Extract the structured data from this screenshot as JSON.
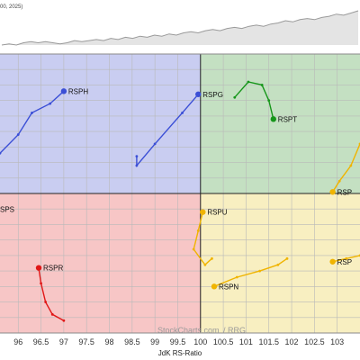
{
  "header": {
    "date_fragment": "00, 2025)"
  },
  "colors": {
    "improving": "#c9cdf1",
    "leading": "#c4e0c2",
    "lagging": "#f7c6c6",
    "weakening": "#f8efc1",
    "center_lines": "#222222",
    "grid": "#b9b9b9",
    "rsph_rspg": "#3b4fd6",
    "rspt": "#16961a",
    "rspr": "#e01818",
    "rspu_rspn_rsps_right": "#f0b400",
    "strip_fill": "#e4e4e4",
    "strip_line": "#9a9a9a"
  },
  "watermark": {
    "brand": "StockCharts.com",
    "product": "/ RRG"
  },
  "chart_data": {
    "type": "scatter",
    "title": "",
    "xlabel": "JdK RS-Ratio",
    "ylabel": "",
    "xlim": [
      95.6,
      103.5
    ],
    "ylim": [
      95.5,
      104.5
    ],
    "center": [
      100,
      100
    ],
    "x_ticks": [
      "96",
      "96.5",
      "97",
      "97.5",
      "98",
      "98.5",
      "99",
      "99.5",
      "100",
      "100.5",
      "101",
      "101.5",
      "102",
      "102.5",
      "103"
    ],
    "quadrants": {
      "improving": "top-left",
      "leading": "top-right",
      "lagging": "bottom-left",
      "weakening": "bottom-right"
    },
    "series": [
      {
        "name": "RSPH",
        "color": "#3b4fd6",
        "points": [
          [
            95.6,
            101.3
          ],
          [
            96.0,
            101.9
          ],
          [
            96.3,
            102.6
          ],
          [
            96.7,
            102.9
          ],
          [
            97.0,
            103.3
          ]
        ]
      },
      {
        "name": "RSPG",
        "color": "#3b4fd6",
        "points": [
          [
            98.6,
            101.2
          ],
          [
            98.6,
            100.9
          ],
          [
            99.0,
            101.6
          ],
          [
            99.6,
            102.6
          ],
          [
            99.95,
            103.2
          ]
        ]
      },
      {
        "name": "RSPT",
        "color": "#16961a",
        "points": [
          [
            100.75,
            103.1
          ],
          [
            101.05,
            103.6
          ],
          [
            101.35,
            103.5
          ],
          [
            101.5,
            103.0
          ],
          [
            101.6,
            102.4
          ]
        ]
      },
      {
        "name": "RSPR",
        "color": "#e01818",
        "points": [
          [
            97.0,
            95.9
          ],
          [
            96.75,
            96.1
          ],
          [
            96.6,
            96.5
          ],
          [
            96.5,
            97.1
          ],
          [
            96.45,
            97.6
          ]
        ]
      },
      {
        "name": "RSPU",
        "color": "#f0b400",
        "points": [
          [
            100.25,
            97.9
          ],
          [
            100.1,
            97.7
          ],
          [
            99.85,
            98.2
          ],
          [
            99.95,
            98.8
          ],
          [
            100.05,
            99.4
          ]
        ]
      },
      {
        "name": "RSPN",
        "color": "#f0b400",
        "points": [
          [
            101.9,
            97.9
          ],
          [
            101.7,
            97.7
          ],
          [
            101.3,
            97.5
          ],
          [
            100.8,
            97.3
          ],
          [
            100.3,
            97.0
          ]
        ]
      },
      {
        "name": "RSPS",
        "color": "#f0b400",
        "points": [
          [
            103.5,
            101.6
          ],
          [
            103.3,
            100.9
          ],
          [
            103.05,
            100.4
          ],
          [
            102.9,
            100.05
          ]
        ]
      },
      {
        "name": "RSPC",
        "color": "#f0b400",
        "points": [
          [
            103.5,
            98.0
          ],
          [
            103.2,
            97.9
          ],
          [
            102.9,
            97.8
          ]
        ]
      }
    ],
    "labels": [
      {
        "text": "RSPH",
        "series": "RSPH",
        "anchor": "end"
      },
      {
        "text": "RSPG",
        "series": "RSPG",
        "anchor": "end"
      },
      {
        "text": "RSPT",
        "series": "RSPT",
        "anchor": "end"
      },
      {
        "text": "RSPR",
        "series": "RSPR",
        "anchor": "end"
      },
      {
        "text": "RSPU",
        "series": "RSPU",
        "anchor": "end"
      },
      {
        "text": "RSPN",
        "series": "RSPN",
        "anchor": "end"
      },
      {
        "text": "RSP",
        "series": "RSPS",
        "anchor": "end"
      },
      {
        "text": "RSP",
        "series": "RSPC",
        "anchor": "end"
      },
      {
        "text": "SPS",
        "series": "",
        "anchor": "left-edge",
        "at": [
          95.6,
          99.4
        ]
      }
    ],
    "strip": {
      "values": [
        2,
        3,
        2,
        4,
        5,
        4,
        5,
        4,
        3,
        4,
        6,
        5,
        6,
        7,
        6,
        8,
        7,
        9,
        8,
        10,
        9,
        11,
        10,
        12,
        11,
        13,
        14,
        13,
        15,
        16,
        15,
        17,
        18,
        17,
        19,
        20,
        19,
        21,
        22,
        24,
        23,
        25,
        26,
        25,
        27,
        28,
        30,
        29,
        31,
        33
      ]
    }
  }
}
